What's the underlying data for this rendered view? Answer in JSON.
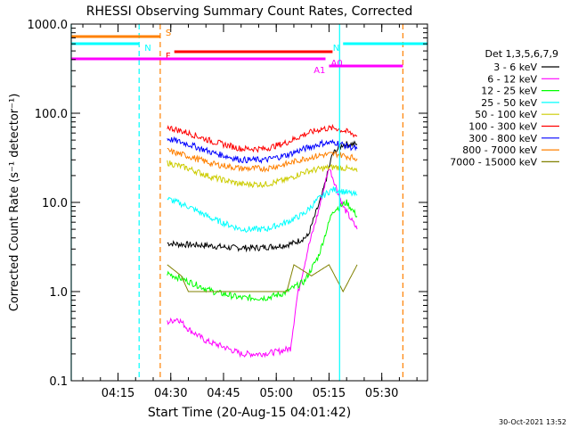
{
  "chart_data": {
    "type": "line",
    "title": "RHESSI Observing Summary Count Rates, Corrected",
    "xlabel": "Start Time (20-Aug-15 04:01:42)",
    "ylabel": "Corrected Count Rate (s⁻¹ detector⁻¹)",
    "yscale": "log",
    "ylim": [
      0.1,
      1000
    ],
    "xlim": [
      "04:01:42",
      "05:43:00"
    ],
    "x_ticks": [
      "04:15",
      "04:30",
      "04:45",
      "05:00",
      "05:15",
      "05:30"
    ],
    "y_ticks": [
      "0.1",
      "1.0",
      "10.0",
      "100.0",
      "1000.0"
    ],
    "legend_title": "Det 1,3,5,6,7,9",
    "legend_position": "right",
    "footer": "30-Oct-2021 13:52",
    "series": [
      {
        "name": "3 - 6 keV",
        "color": "#000000",
        "x": [
          "04:29",
          "04:32",
          "04:40",
          "04:47",
          "04:55",
          "05:02",
          "05:05",
          "05:09",
          "05:13",
          "05:16",
          "05:19",
          "05:23"
        ],
        "values": [
          3.5,
          3.4,
          3.3,
          3.1,
          3.1,
          3.3,
          3.5,
          4.2,
          12,
          35,
          45,
          45
        ]
      },
      {
        "name": "6 - 12 keV",
        "color": "#ff00ff",
        "x": [
          "04:29",
          "04:32",
          "04:35",
          "04:40",
          "04:45",
          "04:50",
          "04:55",
          "05:00",
          "05:04",
          "05:06",
          "05:09",
          "05:12",
          "05:15",
          "05:19",
          "05:23"
        ],
        "values": [
          0.45,
          0.5,
          0.38,
          0.28,
          0.24,
          0.2,
          0.2,
          0.21,
          0.23,
          0.9,
          3,
          8,
          25,
          9,
          5
        ]
      },
      {
        "name": "12 - 25 keV",
        "color": "#00ff00",
        "x": [
          "04:29",
          "04:35",
          "04:42",
          "04:50",
          "04:57",
          "05:02",
          "05:08",
          "05:12",
          "05:16",
          "05:20",
          "05:23"
        ],
        "values": [
          1.6,
          1.3,
          1.0,
          0.85,
          0.85,
          0.95,
          1.3,
          2.5,
          8,
          10,
          7
        ]
      },
      {
        "name": "25 - 50 keV",
        "color": "#00ffff",
        "x": [
          "04:29",
          "04:35",
          "04:42",
          "04:50",
          "04:57",
          "05:03",
          "05:08",
          "05:12",
          "05:16",
          "05:20",
          "05:23"
        ],
        "values": [
          11,
          9,
          6.5,
          5,
          5,
          6,
          7.5,
          11,
          14,
          13,
          12
        ]
      },
      {
        "name": "50 - 100 keV",
        "color": "#cccc00",
        "x": [
          "04:29",
          "04:35",
          "04:42",
          "04:50",
          "04:57",
          "05:03",
          "05:08",
          "05:13",
          "05:17",
          "05:20",
          "05:23"
        ],
        "values": [
          28,
          24,
          19,
          16,
          16,
          18,
          22,
          24,
          25,
          24,
          22
        ]
      },
      {
        "name": "100 - 300 keV",
        "color": "#ff0000",
        "x": [
          "04:29",
          "04:35",
          "04:42",
          "04:50",
          "04:57",
          "05:03",
          "05:08",
          "05:13",
          "05:17",
          "05:20",
          "05:23"
        ],
        "values": [
          70,
          60,
          48,
          40,
          40,
          47,
          58,
          67,
          68,
          62,
          56
        ]
      },
      {
        "name": "300 - 800 keV",
        "color": "#0000ff",
        "x": [
          "04:29",
          "04:35",
          "04:42",
          "04:50",
          "04:57",
          "05:03",
          "05:08",
          "05:13",
          "05:17",
          "05:20",
          "05:23"
        ],
        "values": [
          52,
          45,
          36,
          30,
          30,
          34,
          40,
          46,
          47,
          43,
          40
        ]
      },
      {
        "name": "800 - 7000 keV",
        "color": "#ff8000",
        "x": [
          "04:29",
          "04:35",
          "04:42",
          "04:50",
          "04:57",
          "05:03",
          "05:08",
          "05:13",
          "05:17",
          "05:20",
          "05:23"
        ],
        "values": [
          38,
          33,
          27,
          24,
          24,
          27,
          31,
          34,
          35,
          33,
          31
        ]
      },
      {
        "name": "7000 - 15000 keV",
        "color": "#808000",
        "x": [
          "04:29",
          "04:33",
          "04:35",
          "04:45",
          "04:55",
          "05:03",
          "05:05",
          "05:10",
          "05:15",
          "05:19",
          "05:23"
        ],
        "values": [
          2.0,
          1.5,
          1.0,
          1.0,
          1.0,
          1.0,
          2.0,
          1.5,
          2.0,
          1.0,
          2.0
        ]
      }
    ],
    "flag_lines": [
      {
        "label": "S",
        "color": "#ff8000",
        "x_start": "04:01:42",
        "x_end": "04:27",
        "level": "top"
      },
      {
        "label": "N",
        "color": "#00ffff",
        "x_start": "04:01:42",
        "x_end": "04:21",
        "level": "second"
      },
      {
        "label": "N",
        "color": "#00ffff",
        "x_start": "05:19",
        "x_end": "05:43",
        "level": "second"
      },
      {
        "label": "F",
        "color": "#ff0000",
        "x_start": "04:31",
        "x_end": "05:16",
        "level": "third"
      },
      {
        "label": "A0",
        "color": "#ff00ff",
        "x_start": "04:01:42",
        "x_end": "05:14",
        "level": "fourth"
      },
      {
        "label": "A1",
        "color": "#ff00ff",
        "x_start": "05:15",
        "x_end": "05:36",
        "level": "fifth"
      }
    ],
    "vertical_markers": [
      {
        "x": "04:01:42",
        "color": "#00ffff",
        "style": "solid"
      },
      {
        "x": "04:21",
        "color": "#00ffff",
        "style": "dashed"
      },
      {
        "x": "04:27",
        "color": "#ff8000",
        "style": "dashed"
      },
      {
        "x": "05:18",
        "color": "#00ffff",
        "style": "solid"
      },
      {
        "x": "05:36",
        "color": "#ff8000",
        "style": "dashed"
      }
    ]
  }
}
